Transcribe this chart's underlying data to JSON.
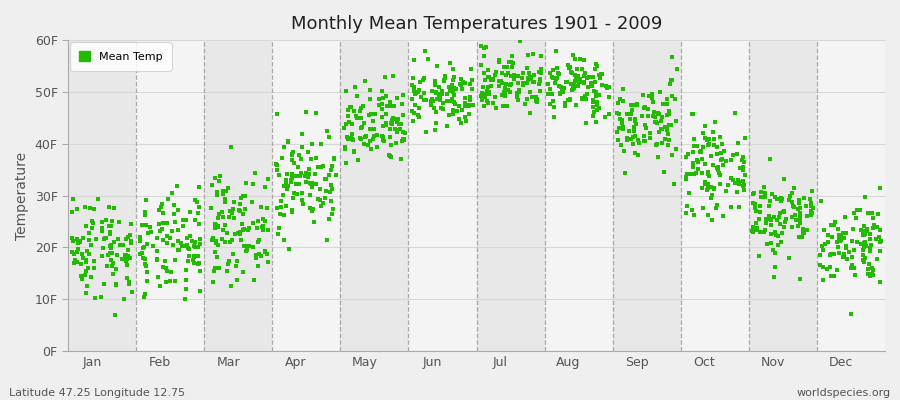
{
  "title": "Monthly Mean Temperatures 1901 - 2009",
  "ylabel": "Temperature",
  "xlabel_labels": [
    "Jan",
    "Feb",
    "Mar",
    "Apr",
    "May",
    "Jun",
    "Jul",
    "Aug",
    "Sep",
    "Oct",
    "Nov",
    "Dec"
  ],
  "ytick_labels": [
    "0F",
    "10F",
    "20F",
    "30F",
    "40F",
    "50F",
    "60F"
  ],
  "ytick_values": [
    0,
    10,
    20,
    30,
    40,
    50,
    60
  ],
  "ylim": [
    0,
    60
  ],
  "marker_color": "#22bb00",
  "marker_size": 5,
  "legend_label": "Mean Temp",
  "footer_left": "Latitude 47.25 Longitude 12.75",
  "footer_right": "worldspecies.org",
  "background_color": "#efefef",
  "band_colors": [
    "#e8e8e8",
    "#f4f4f4"
  ],
  "monthly_means_F": [
    20,
    20,
    24,
    33,
    43,
    49,
    52,
    51,
    44,
    35,
    26,
    21
  ],
  "monthly_stds_F": [
    5,
    5,
    5,
    5,
    4,
    3,
    3,
    3,
    4,
    4,
    4,
    4
  ],
  "n_years": 109,
  "grid_color": "#d8d8d8",
  "dashed_line_color": "#999999"
}
